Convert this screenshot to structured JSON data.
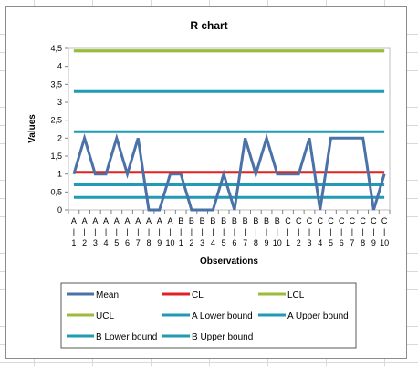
{
  "chart_data": {
    "type": "line",
    "title": "R chart",
    "xlabel": "Observations",
    "ylabel": "Values",
    "ylim": [
      0,
      4.5
    ],
    "yticks": [
      "0",
      "0,5",
      "1",
      "1,5",
      "2",
      "2,5",
      "3",
      "3,5",
      "4",
      "4,5"
    ],
    "grid": false,
    "legend_position": "bottom",
    "categories": [
      [
        "A",
        "1"
      ],
      [
        "A",
        "2"
      ],
      [
        "A",
        "3"
      ],
      [
        "A",
        "4"
      ],
      [
        "A",
        "5"
      ],
      [
        "A",
        "6"
      ],
      [
        "A",
        "7"
      ],
      [
        "A",
        "8"
      ],
      [
        "A",
        "9"
      ],
      [
        "A",
        "10"
      ],
      [
        "B",
        "1"
      ],
      [
        "B",
        "2"
      ],
      [
        "B",
        "3"
      ],
      [
        "B",
        "4"
      ],
      [
        "B",
        "5"
      ],
      [
        "B",
        "6"
      ],
      [
        "B",
        "7"
      ],
      [
        "B",
        "8"
      ],
      [
        "B",
        "9"
      ],
      [
        "B",
        "10"
      ],
      [
        "C",
        "1"
      ],
      [
        "C",
        "2"
      ],
      [
        "C",
        "3"
      ],
      [
        "C",
        "4"
      ],
      [
        "C",
        "5"
      ],
      [
        "C",
        "6"
      ],
      [
        "C",
        "7"
      ],
      [
        "C",
        "8"
      ],
      [
        "C",
        "9"
      ],
      [
        "C",
        "10"
      ]
    ],
    "series": [
      {
        "name": "Mean",
        "color": "#4a72a8",
        "values": [
          1,
          2,
          1,
          1,
          2,
          1,
          2,
          0,
          0,
          1,
          1,
          0,
          0,
          0,
          1,
          0,
          2,
          1,
          2,
          1,
          1,
          1,
          2,
          0,
          2,
          2,
          2,
          2,
          0,
          1
        ]
      },
      {
        "name": "CL",
        "color": "#e32121",
        "values": [
          1.05,
          1.05,
          1.05,
          1.05,
          1.05,
          1.05,
          1.05,
          1.05,
          1.05,
          1.05,
          1.05,
          1.05,
          1.05,
          1.05,
          1.05,
          1.05,
          1.05,
          1.05,
          1.05,
          1.05,
          1.05,
          1.05,
          1.05,
          1.05,
          1.05,
          1.05,
          1.05,
          1.05,
          1.05,
          1.05
        ]
      },
      {
        "name": "LCL",
        "color": "#9bbb3b",
        "values": [
          4.43,
          4.43,
          4.43,
          4.43,
          4.43,
          4.43,
          4.43,
          4.43,
          4.43,
          4.43,
          4.43,
          4.43,
          4.43,
          4.43,
          4.43,
          4.43,
          4.43,
          4.43,
          4.43,
          4.43,
          4.43,
          4.43,
          4.43,
          4.43,
          4.43,
          4.43,
          4.43,
          4.43,
          4.43,
          4.43
        ]
      },
      {
        "name": "UCL",
        "color": "#9bbb3b",
        "values": [
          4.43,
          4.43,
          4.43,
          4.43,
          4.43,
          4.43,
          4.43,
          4.43,
          4.43,
          4.43,
          4.43,
          4.43,
          4.43,
          4.43,
          4.43,
          4.43,
          4.43,
          4.43,
          4.43,
          4.43,
          4.43,
          4.43,
          4.43,
          4.43,
          4.43,
          4.43,
          4.43,
          4.43,
          4.43,
          4.43
        ]
      },
      {
        "name": "A Lower bound",
        "color": "#1f9bb5",
        "values": [
          3.3,
          3.3,
          3.3,
          3.3,
          3.3,
          3.3,
          3.3,
          3.3,
          3.3,
          3.3,
          3.3,
          3.3,
          3.3,
          3.3,
          3.3,
          3.3,
          3.3,
          3.3,
          3.3,
          3.3,
          3.3,
          3.3,
          3.3,
          3.3,
          3.3,
          3.3,
          3.3,
          3.3,
          3.3,
          3.3
        ]
      },
      {
        "name": "A Upper bound",
        "color": "#1f9bb5",
        "values": [
          2.18,
          2.18,
          2.18,
          2.18,
          2.18,
          2.18,
          2.18,
          2.18,
          2.18,
          2.18,
          2.18,
          2.18,
          2.18,
          2.18,
          2.18,
          2.18,
          2.18,
          2.18,
          2.18,
          2.18,
          2.18,
          2.18,
          2.18,
          2.18,
          2.18,
          2.18,
          2.18,
          2.18,
          2.18,
          2.18
        ]
      },
      {
        "name": "B Lower bound",
        "color": "#1f9bb5",
        "values": [
          0.7,
          0.7,
          0.7,
          0.7,
          0.7,
          0.7,
          0.7,
          0.7,
          0.7,
          0.7,
          0.7,
          0.7,
          0.7,
          0.7,
          0.7,
          0.7,
          0.7,
          0.7,
          0.7,
          0.7,
          0.7,
          0.7,
          0.7,
          0.7,
          0.7,
          0.7,
          0.7,
          0.7,
          0.7,
          0.7
        ]
      },
      {
        "name": "B Upper bound",
        "color": "#1f9bb5",
        "values": [
          0.35,
          0.35,
          0.35,
          0.35,
          0.35,
          0.35,
          0.35,
          0.35,
          0.35,
          0.35,
          0.35,
          0.35,
          0.35,
          0.35,
          0.35,
          0.35,
          0.35,
          0.35,
          0.35,
          0.35,
          0.35,
          0.35,
          0.35,
          0.35,
          0.35,
          0.35,
          0.35,
          0.35,
          0.35,
          0.35
        ]
      }
    ]
  }
}
